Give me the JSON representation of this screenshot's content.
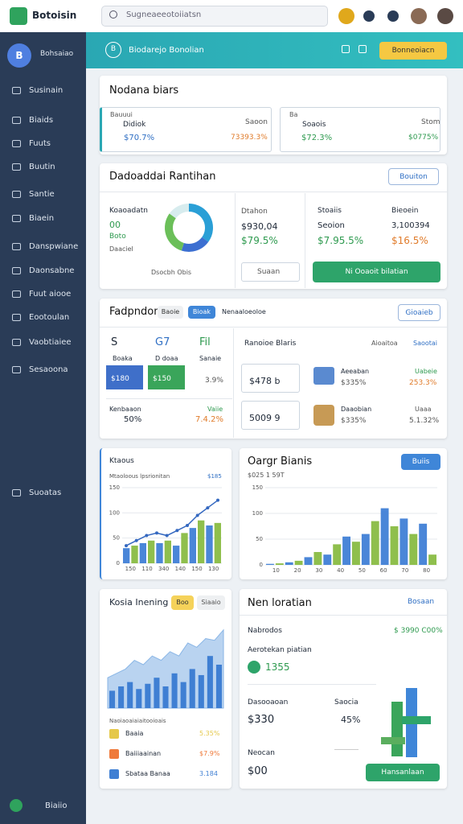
{
  "topbar": {
    "brand": "Botoisin",
    "search": "Sugneaeeotoiiatsn"
  },
  "sidebar": {
    "profile": "Bohsaiao",
    "items": [
      "Susinain",
      "Biaids",
      "Fuuts",
      "Buutin",
      "Santie",
      "Biaein",
      "Danspwiane",
      "Daonsabne",
      "Fuut aiooe",
      "Eootoulan",
      "Vaobtiaiee",
      "Sesaoona"
    ],
    "extra": "Suoatas",
    "footer": "Biaiio"
  },
  "header": {
    "badge": "B",
    "title": "Biodarejo Bonolian",
    "button": "Bonneoiacn"
  },
  "overview": {
    "title": "Nodana biars",
    "cards": [
      {
        "label": "Bauuui",
        "name": "Didiok",
        "value": "Saoon",
        "stat1": "$70.7%",
        "stat2": "73393.3%"
      },
      {
        "label": "Ba",
        "name": "Soaois",
        "value": "Stom",
        "stat1": "$72.3%",
        "stat2": "$0775%"
      }
    ]
  },
  "analytics": {
    "title": "Dadoaddai Rantihan",
    "button": "Bouiton",
    "donut_label": "Koaoadatn",
    "donut_pct": "00",
    "donut_sub": "Boto",
    "donut_note": "Daaciel",
    "donut_legend": "Dsocbh Obis",
    "donut": {
      "values": [
        35,
        20,
        30,
        15
      ],
      "colors": [
        "#2a9fd6",
        "#3c6fd1",
        "#6bbf59",
        "#d7ecee"
      ]
    },
    "mid_label": "Dtahon",
    "mid_v1": "$930,04",
    "mid_v2": "$79.5%",
    "select": "Suaan",
    "right_label": "Stoaiis",
    "right_label2": "Bieoein",
    "right_r1": "Seoion",
    "right_r2": "3,100394",
    "right_r3": "$7.95.5%",
    "right_r4": "$16.5%",
    "cta": "Ni Ooaoit bilatian"
  },
  "perf": {
    "title": "Fadpndom",
    "tabs": [
      "Baoie",
      "Bioak",
      "Nenaaloeoloe"
    ],
    "button": "Gioaieb",
    "blocks": [
      {
        "head": "S",
        "label": "Boaka",
        "value": "$180"
      },
      {
        "head": "G7",
        "label": "D doaa",
        "value": "$150"
      },
      {
        "head": "Fil",
        "label": "Sanaie",
        "value": "3.9%"
      }
    ],
    "bottom_label": "Kenbaaon",
    "bottom_value": "50%",
    "bottom_label2": "Vaiie",
    "bottom_value2": "7.4.2%",
    "list_title": "Ranoioe Blaris",
    "list_h1": "Aioaitoa",
    "list_h2": "Saootai",
    "boxes": [
      "$478 b",
      "5009 9"
    ],
    "rows": [
      {
        "name": "Aeeaban",
        "pct": "$335%",
        "tag": "Uabeie",
        "value": "253.3%"
      },
      {
        "name": "Daaobian",
        "pct": "$335%",
        "tag": "Uaaa",
        "value": "5.1.32%"
      }
    ]
  },
  "trend": {
    "title": "Ktaous",
    "subtitle": "Mtaoloous lpsrionitan",
    "subvalue": "$185",
    "ylim": [
      0,
      150
    ],
    "yticks": [
      0,
      50,
      100,
      150
    ],
    "xlabels": [
      "150",
      "110",
      "340",
      "140",
      "150",
      "130"
    ],
    "bars": [
      30,
      35,
      40,
      45,
      40,
      45,
      35,
      60,
      70,
      85,
      75,
      80
    ],
    "line": [
      35,
      45,
      55,
      60,
      55,
      65,
      75,
      95,
      110,
      125
    ],
    "bar_colors": [
      "#4a86d8",
      "#8fbf4d"
    ],
    "line_color": "#3468c0"
  },
  "orders": {
    "title": "Oargr Bianis",
    "button": "Buiis",
    "subtitle": "$025 1 59T",
    "ylim": [
      0,
      150
    ],
    "yticks": [
      0,
      50,
      100,
      150
    ],
    "xlabels": [
      "10",
      "20",
      "30",
      "40",
      "50",
      "60",
      "70",
      "80"
    ],
    "series": [
      {
        "name": "A",
        "color": "#4a86d8",
        "values": [
          2,
          5,
          15,
          20,
          55,
          60,
          110,
          90,
          80
        ]
      },
      {
        "name": "B",
        "color": "#8fbf4d",
        "values": [
          3,
          8,
          25,
          40,
          45,
          85,
          75,
          60,
          20
        ]
      }
    ]
  },
  "income": {
    "title": "Kosia Inening",
    "badges": [
      "Boo",
      "Siaaio"
    ],
    "ylim": [
      0,
      100
    ],
    "area": [
      35,
      40,
      45,
      55,
      50,
      60,
      55,
      65,
      60,
      75,
      70,
      80,
      78,
      90
    ],
    "bars": [
      20,
      25,
      30,
      22,
      28,
      35,
      25,
      40,
      30,
      45,
      38,
      60,
      50
    ],
    "area_color": "#8ab6e6",
    "bar_color": "#3f7fd3",
    "legend_title": "Naoiaoaiaiaitooioais",
    "legend": [
      {
        "name": "Baaia",
        "value": "5.35%",
        "color": "#e5c84a"
      },
      {
        "name": "Baiiiaainan",
        "value": "$7.9%",
        "color": "#ef7a3a"
      },
      {
        "name": "Sbataa Banaa",
        "value": "3.184",
        "color": "#3f7fd3"
      }
    ]
  },
  "location": {
    "title": "Nen loratian",
    "button": "Bosaan",
    "row1": "Nabrodos",
    "row1_value": "$ 3990 C00%",
    "row2": "Aerotekan piatian",
    "badge": "1355",
    "s1_label": "Dasooaoan",
    "s1_value": "$330",
    "s2_label": "Saocia",
    "s2_value": "45%",
    "s3_label": "Neocan",
    "s3_value": "$00",
    "cta": "Hansanlaan"
  }
}
